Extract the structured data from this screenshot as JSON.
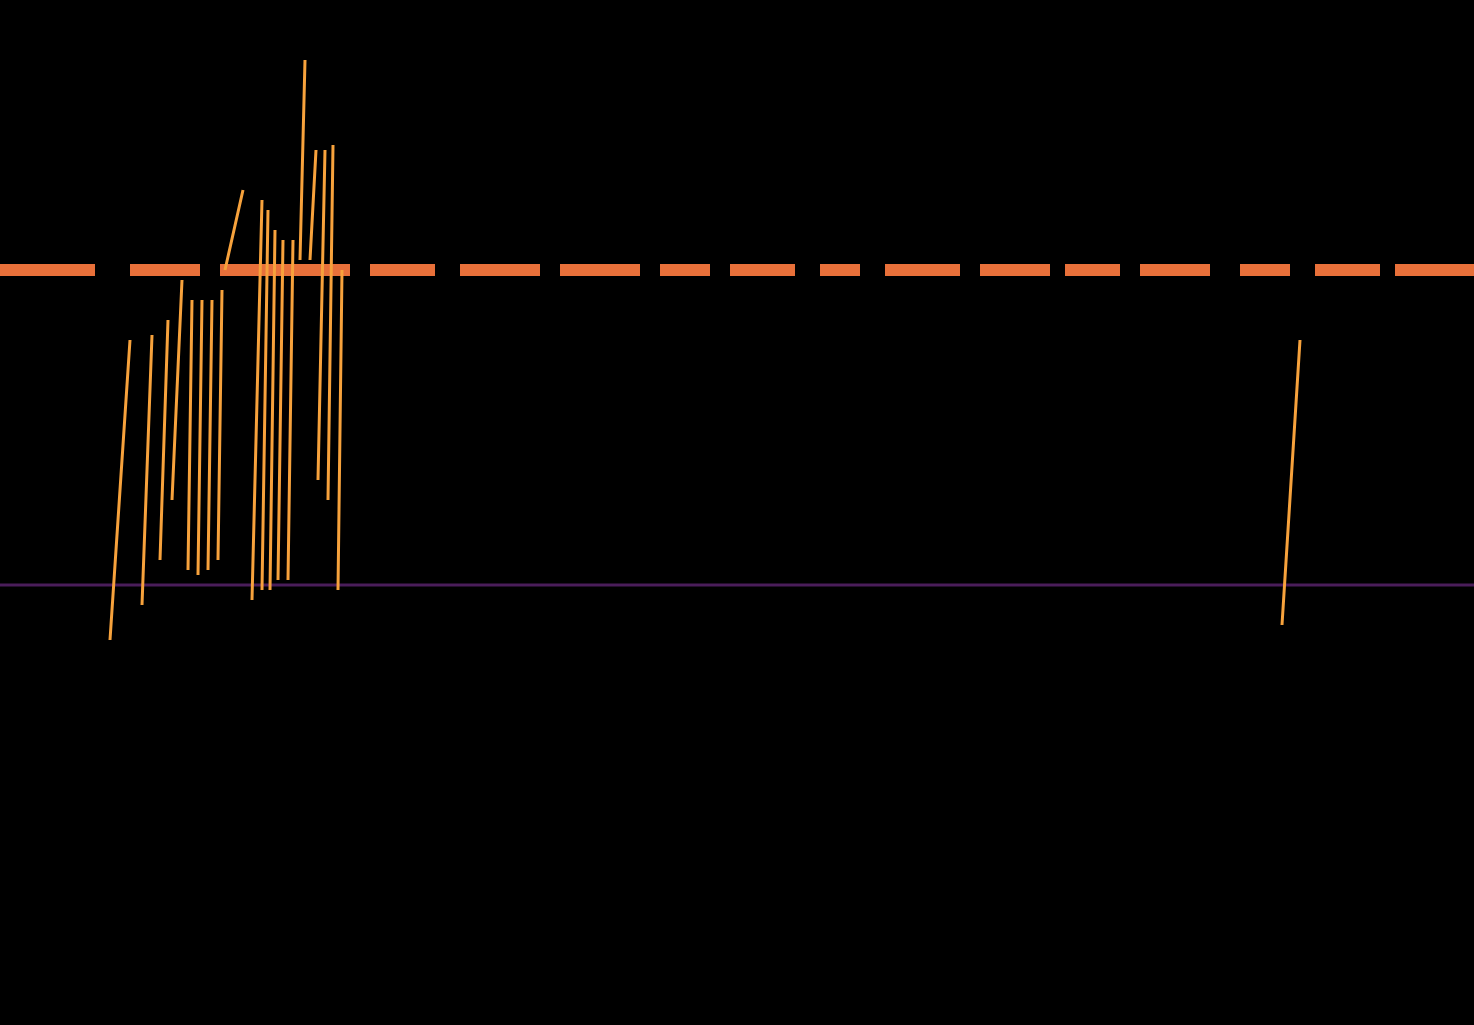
{
  "chart_data": {
    "type": "spectrogram",
    "tick_labels": false,
    "xlim": [
      0,
      1474
    ],
    "ylim": [
      0,
      1025
    ],
    "series": [
      {
        "type": "line",
        "line_style": "band",
        "color": "#e8703a",
        "x": [
          0,
          95,
          95,
          130,
          200,
          200,
          220,
          350,
          350,
          370,
          435,
          435,
          460,
          540,
          540,
          560,
          640,
          640,
          660,
          710,
          710,
          730,
          795,
          795,
          820,
          860,
          860,
          885,
          960,
          960,
          980,
          1050,
          1050,
          1065,
          1120,
          1120,
          1140,
          1210,
          1210,
          1240,
          1290,
          1290,
          1315,
          1380,
          1380,
          1395,
          1474
        ],
        "values": [
          755,
          755,
          null,
          755,
          755,
          null,
          755,
          755,
          null,
          755,
          755,
          null,
          755,
          755,
          null,
          755,
          755,
          null,
          755,
          755,
          null,
          755,
          755,
          null,
          755,
          755,
          null,
          755,
          755,
          null,
          755,
          755,
          null,
          755,
          755,
          null,
          755,
          755,
          null,
          755,
          755,
          null,
          755,
          755,
          null,
          755,
          755
        ]
      },
      {
        "type": "line",
        "line_style": "faint",
        "color": "#6a2a80",
        "x": [
          0,
          1474
        ],
        "values": [
          440,
          440
        ]
      },
      {
        "type": "line",
        "line_style": "chirp",
        "color": "#f7a23c",
        "x": [
          110,
          130,
          130,
          142,
          152,
          152,
          160,
          168,
          168,
          172,
          182,
          182,
          188,
          192,
          192,
          198,
          202,
          202,
          208,
          212,
          212,
          218,
          222,
          222,
          225,
          243,
          243,
          252,
          262,
          262,
          262,
          268,
          268,
          270,
          275,
          275,
          278,
          283,
          283,
          288,
          293,
          293,
          300,
          305,
          305,
          310,
          316,
          316,
          318,
          325,
          325,
          328,
          333,
          333,
          338,
          342,
          342,
          1282,
          1300
        ],
        "values": [
          385,
          685,
          null,
          420,
          690,
          null,
          465,
          705,
          null,
          525,
          745,
          null,
          455,
          725,
          null,
          450,
          725,
          null,
          455,
          725,
          null,
          465,
          735,
          null,
          755,
          835,
          null,
          425,
          825,
          null,
          435,
          815,
          null,
          435,
          795,
          null,
          445,
          785,
          null,
          445,
          785,
          null,
          765,
          965,
          null,
          765,
          875,
          null,
          545,
          875,
          null,
          525,
          880,
          null,
          435,
          755,
          null,
          400,
          685
        ]
      }
    ]
  }
}
